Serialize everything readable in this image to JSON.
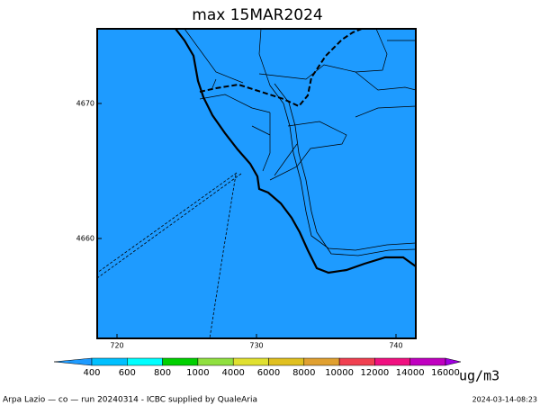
{
  "chart_data": {
    "type": "map",
    "title": "max 15MAR2024",
    "xlim": [
      718.58,
      741.42
    ],
    "xticks": [
      720,
      730,
      740
    ],
    "ylim": [
      4652.6,
      4675.53
    ],
    "yticks": [
      4660,
      4670
    ],
    "background": "#1e9bff",
    "colorbar": {
      "levels": [
        400,
        600,
        800,
        1000,
        4000,
        6000,
        8000,
        10000,
        12000,
        14000,
        16000
      ],
      "colors": [
        "#1e9bff",
        "#00c0ff",
        "#00ffff",
        "#00d000",
        "#90e040",
        "#e0e030",
        "#e0c020",
        "#e0a030",
        "#f04050",
        "#f01080",
        "#c000c0",
        "#a000e0"
      ],
      "unit": "ug/m3"
    },
    "footer_left": "Arpa Lazio — co — run 20240314 - ICBC supplied by QualeAria",
    "footer_right": "2024-03-14-08:23"
  }
}
